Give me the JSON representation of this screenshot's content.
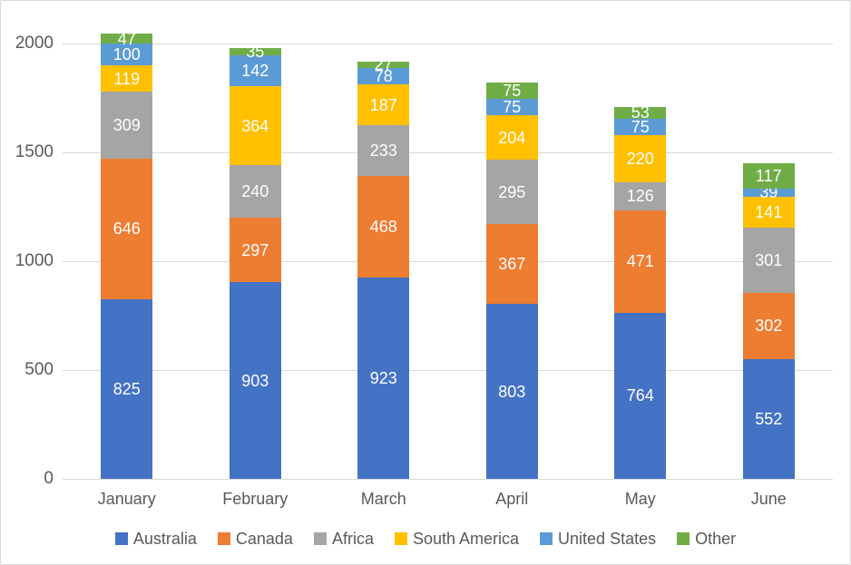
{
  "chart": {
    "background_color": "#FFFFFF",
    "border_color": "#D9D9D9",
    "gridline_color": "#D9D9D9",
    "axis_label_color": "#595959",
    "data_label_color": "#FFFFFF"
  },
  "chart_data": {
    "type": "bar",
    "stacked": true,
    "title": "",
    "xlabel": "",
    "ylabel": "",
    "grid": true,
    "data_labels": true,
    "legend_position": "bottom",
    "ylim": [
      0,
      2000
    ],
    "yticks": [
      0,
      500,
      1000,
      1500,
      2000
    ],
    "categories": [
      "January",
      "February",
      "March",
      "April",
      "May",
      "June"
    ],
    "series": [
      {
        "name": "Australia",
        "color": "#4472C4",
        "values": [
          825,
          903,
          923,
          803,
          764,
          552
        ]
      },
      {
        "name": "Canada",
        "color": "#ED7D31",
        "values": [
          646,
          297,
          468,
          367,
          471,
          302
        ]
      },
      {
        "name": "Africa",
        "color": "#A5A5A5",
        "values": [
          309,
          240,
          233,
          295,
          126,
          301
        ]
      },
      {
        "name": "South America",
        "color": "#FFC000",
        "values": [
          119,
          364,
          187,
          204,
          220,
          141
        ]
      },
      {
        "name": "United States",
        "color": "#5B9BD5",
        "values": [
          100,
          142,
          78,
          75,
          75,
          39
        ]
      },
      {
        "name": "Other",
        "color": "#70AD47",
        "values": [
          47,
          35,
          27,
          75,
          53,
          117
        ]
      }
    ]
  }
}
